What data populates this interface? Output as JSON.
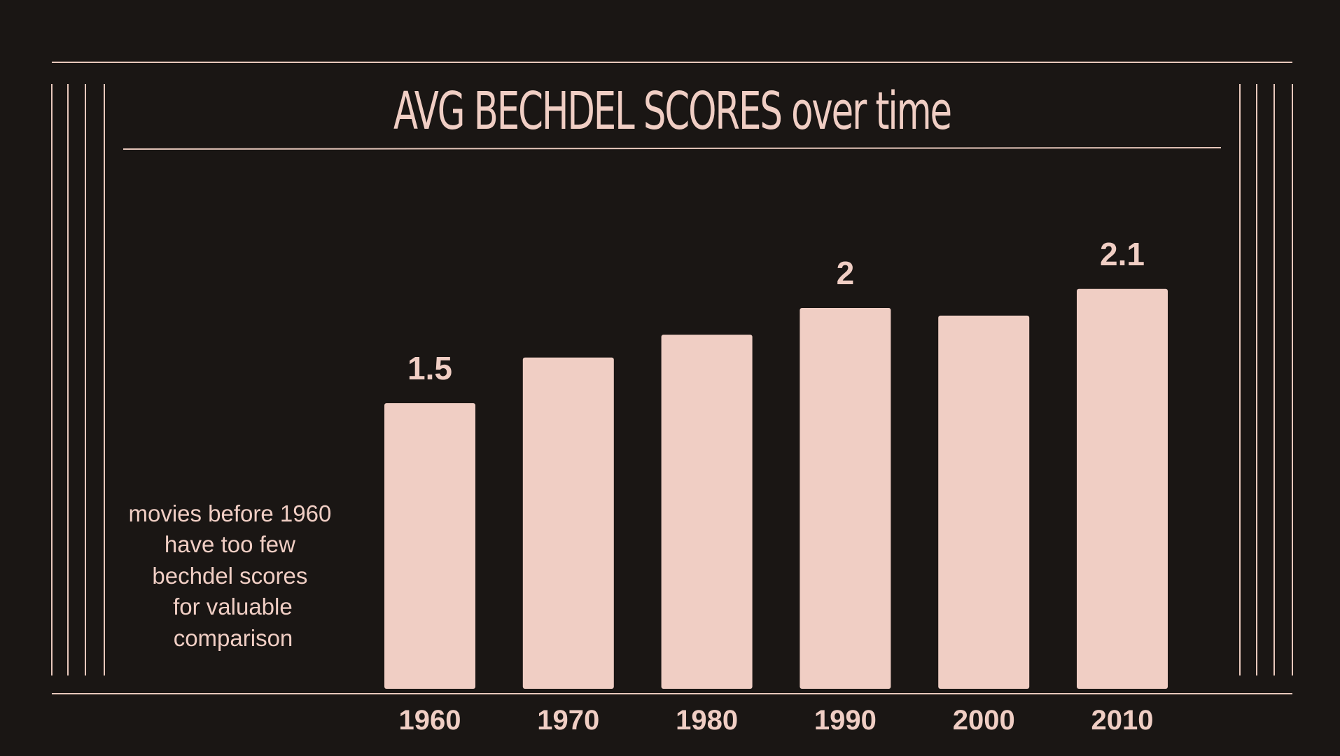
{
  "chart_data": {
    "type": "bar",
    "title": "AVG BECHDEL SCORES over time",
    "categories": [
      "1960",
      "1970",
      "1980",
      "1990",
      "2000",
      "2010"
    ],
    "values": [
      1.5,
      1.74,
      1.86,
      2.0,
      1.96,
      2.1
    ],
    "data_labels": [
      "1.5",
      "",
      "",
      "2",
      "",
      "2.1"
    ],
    "ylim": [
      0,
      2.6
    ],
    "xlabel": "",
    "ylabel": "",
    "grid": false,
    "annotation": [
      "movies before 1960",
      "have too few",
      "bechdel scores",
      "for valuable",
      "comparison"
    ]
  },
  "colors": {
    "background": "#1a1614",
    "bar": "#f0cec4",
    "text": "#f0cec4",
    "rules": "#e8c8bc"
  }
}
